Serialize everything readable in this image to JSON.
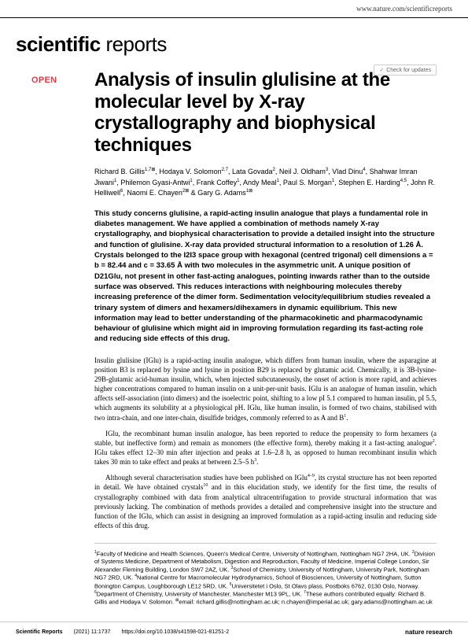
{
  "header": {
    "url": "www.nature.com/scientificreports"
  },
  "journal": {
    "name_bold": "scientific",
    "name_light": " reports"
  },
  "badges": {
    "open": "OPEN",
    "updates": "Check for updates"
  },
  "article": {
    "title": "Analysis of insulin glulisine at the molecular level by X-ray crystallography and biophysical techniques",
    "authors": "Richard B. Gillis<sup>1,7⊠</sup>, Hodaya V. Solomon<sup>2,7</sup>, Lata Govada<sup>2</sup>, Neil J. Oldham<sup>3</sup>, Vlad Dinu<sup>4</sup>, Shahwar Imran Jiwani<sup>1</sup>, Philemon Gyasi-Antwi<sup>1</sup>, Frank Coffey<sup>1</sup>, Andy Meal<sup>1</sup>, Paul S. Morgan<sup>1</sup>, Stephen E. Harding<sup>4,5</sup>, John R. Helliwell<sup>6</sup>, Naomi E. Chayen<sup>2⊠</sup> & Gary G. Adams<sup>1⊠</sup>",
    "abstract": "This study concerns glulisine, a rapid-acting insulin analogue that plays a fundamental role in diabetes management. We have applied a combination of methods namely X-ray crystallography, and biophysical characterisation to provide a detailed insight into the structure and function of glulisine. X-ray data provided structural information to a resolution of 1.26 Å. Crystals belonged to the I2I3 space group with hexagonal (centred trigonal) cell dimensions a = b = 82.44 and c = 33.65 Å with two molecules in the asymmetric unit. A unique position of D21Glu, not present in other fast-acting analogues, pointing inwards rather than to the outside surface was observed. This reduces interactions with neighbouring molecules thereby increasing preference of the dimer form. Sedimentation velocity/equilibrium studies revealed a trinary system of dimers and hexamers/dihexamers in dynamic equilibrium. This new information may lead to better understanding of the pharmacokinetic and pharmacodynamic behaviour of glulisine which might aid in improving formulation regarding its fast-acting role and reducing side effects of this drug.",
    "p1": "Insulin glulisine (IGlu) is a rapid-acting insulin analogue, which differs from human insulin, where the asparagine at position B3 is replaced by lysine and lysine in position B29 is replaced by glutamic acid. Chemically, it is 3B-lysine-29B-glutamic acid-human insulin, which, when injected subcutaneously, the onset of action is more rapid, and achieves higher concentrations compared to human insulin on a unit-per-unit basis. IGlu is an analogue of human insulin, which affects self-association (into dimers) and the isoelectric point, shifting to a low pI 5.1 compared to human insulin, pI 5.5, which augments its solubility at a physiological pH. IGlu, like human insulin, is formed of two chains, stabilised with two intra-chain, and one inter-chain, disulfide bridges, commonly referred to as A and B<sup>1</sup>.",
    "p2": "IGlu, the recombinant human insulin analogue, has been reported to reduce the propensity to form hexamers (a stable, but ineffective form) and remain as monomers (the effective form), thereby making it a fast-acting analogue<sup>2</sup>. IGlu takes effect 12–30 min after injection and peaks at 1.6–2.8 h, as opposed to human recombinant insulin which takes 30 min to take effect and peaks at between 2.5–5 h<sup>3</sup>.",
    "p3": "Although several characterisation studies have been published on IGlu<sup>4–9</sup>, its crystal structure has not been reported in detail. We have obtained crystals<sup>10</sup> and in this elucidation study, we identify for the first time, the results of crystallography combined with data from analytical ultracentrifugation to provide structural information that was previously lacking. The combination of methods provides a detailed and comprehensive insight into the structure and function of the IGlu, which can assist in designing an improved formulation as a rapid-acting insulin and reducing side effects of this drug.",
    "affiliations": "<sup>1</sup>Faculty of Medicine and Health Sciences, Queen's Medical Centre, University of Nottingham, Nottingham NG7 2HA, UK. <sup>2</sup>Division of Systems Medicine, Department of Metabolism, Digestion and Reproduction, Faculty of Medicine, Imperial College London, Sir Alexander Fleming Building, London SW7 2AZ, UK. <sup>3</sup>School of Chemistry, University of Nottingham, University Park, Nottingham NG7 2RD, UK. <sup>4</sup>National Centre for Macromolecular Hydrodynamics, School of Biosciences, University of Nottingham, Sutton Bonington Campus, Loughborough LE12 5RD, UK. <sup>5</sup>Universitetet i Oslo, St Olavs plass, Postboks 6762, 0130 Oslo, Norway. <sup>6</sup>Department of Chemistry, University of Manchester, Manchester M13 9PL, UK. <sup>7</sup>These authors contributed equally: Richard B. Gillis and Hodaya V. Solomon. <sup>⊠</sup>email: richard.gillis@nottingham.ac.uk; n.chayen@imperial.ac.uk; gary.adams@nottingham.ac.uk"
  },
  "footer": {
    "journal": "Scientific Reports",
    "citation": "(2021) 11:1737",
    "doi": "https://doi.org/10.1038/s41598-021-81251-2",
    "publisher": "nature research"
  }
}
